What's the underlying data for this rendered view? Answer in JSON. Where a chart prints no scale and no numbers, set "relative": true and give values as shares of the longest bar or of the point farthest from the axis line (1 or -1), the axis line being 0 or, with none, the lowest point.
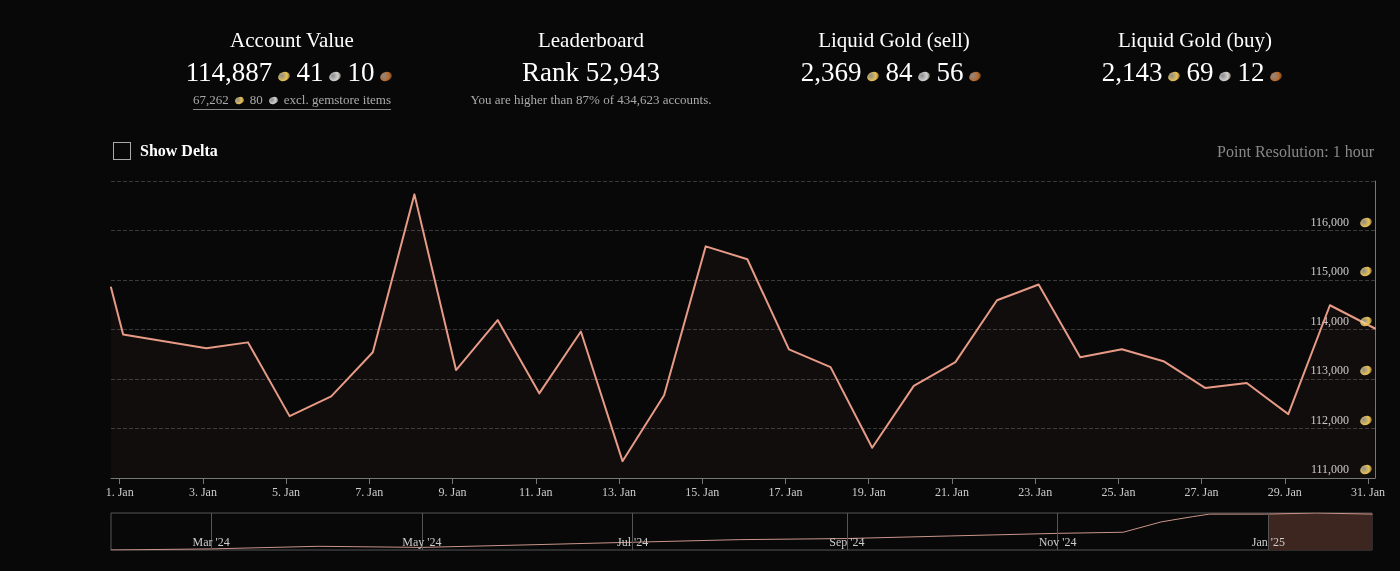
{
  "chart_data": [
    {
      "type": "other",
      "title": "Account Value",
      "annotations": [
        "114,887",
        "41",
        "10",
        "67,262",
        "80",
        "excl. gemstore items"
      ]
    },
    {
      "type": "other",
      "title": "Leaderboard",
      "annotations": [
        "Rank 52,943",
        "You are higher than 87% of 434,623 accounts."
      ]
    },
    {
      "type": "other",
      "title": "Liquid Gold (sell)",
      "annotations": [
        "2,369",
        "84",
        "56"
      ]
    },
    {
      "type": "other",
      "title": "Liquid Gold (buy)",
      "annotations": [
        "2,143",
        "69",
        "12"
      ]
    },
    {
      "type": "area",
      "annotations": [
        "Show Delta",
        "Point Resolution: 1 hour"
      ],
      "x": [
        "2024-12-31T19:00",
        "2025-01-01T02:00",
        "2025-01-03T02:00",
        "2025-01-04T02:00",
        "2025-01-05T02:00",
        "2025-01-06T02:00",
        "2025-01-07T02:00",
        "2025-01-08T02:00",
        "2025-01-09T02:00",
        "2025-01-10T02:00",
        "2025-01-11T02:00",
        "2025-01-12T02:00",
        "2025-01-13T02:00",
        "2025-01-14T02:00",
        "2025-01-15T02:00",
        "2025-01-16T02:00",
        "2025-01-17T02:00",
        "2025-01-18T02:00",
        "2025-01-19T02:00",
        "2025-01-20T02:00",
        "2025-01-21T02:00",
        "2025-01-22T02:00",
        "2025-01-23T02:00",
        "2025-01-24T02:00",
        "2025-01-25T02:00",
        "2025-01-26T02:00",
        "2025-01-27T02:00",
        "2025-01-28T02:00",
        "2025-01-29T02:00",
        "2025-01-30T02:00",
        "2025-01-31T04:00"
      ],
      "series": [
        {
          "color": "#e79a86",
          "values": [
            114850,
            113900,
            113620,
            113740,
            112250,
            112650,
            113540,
            116730,
            113180,
            114190,
            112710,
            113960,
            111340,
            112670,
            115680,
            115420,
            113600,
            113240,
            111610,
            112860,
            113340,
            114590,
            114910,
            113440,
            113600,
            113360,
            112820,
            112920,
            112290,
            114490,
            114020
          ]
        }
      ],
      "xlim": [
        "2024-12-31T19:00",
        "2025-01-31T04:00"
      ],
      "xticks": [
        {
          "value": "2025-01-01",
          "label": "1. Jan"
        },
        {
          "value": "2025-01-03",
          "label": "3. Jan"
        },
        {
          "value": "2025-01-05",
          "label": "5. Jan"
        },
        {
          "value": "2025-01-07",
          "label": "7. Jan"
        },
        {
          "value": "2025-01-09",
          "label": "9. Jan"
        },
        {
          "value": "2025-01-11",
          "label": "11. Jan"
        },
        {
          "value": "2025-01-13",
          "label": "13. Jan"
        },
        {
          "value": "2025-01-15",
          "label": "15. Jan"
        },
        {
          "value": "2025-01-17",
          "label": "17. Jan"
        },
        {
          "value": "2025-01-19",
          "label": "19. Jan"
        },
        {
          "value": "2025-01-21",
          "label": "21. Jan"
        },
        {
          "value": "2025-01-23",
          "label": "23. Jan"
        },
        {
          "value": "2025-01-25",
          "label": "25. Jan"
        },
        {
          "value": "2025-01-27",
          "label": "27. Jan"
        },
        {
          "value": "2025-01-29",
          "label": "29. Jan"
        },
        {
          "value": "2025-01-31",
          "label": "31. Jan"
        }
      ],
      "ylim": [
        111000,
        117000
      ],
      "yticks": [
        {
          "value": 111000,
          "label": "111,000"
        },
        {
          "value": 112000,
          "label": "112,000"
        },
        {
          "value": 113000,
          "label": "113,000"
        },
        {
          "value": 114000,
          "label": "114,000"
        },
        {
          "value": 115000,
          "label": "115,000"
        },
        {
          "value": 116000,
          "label": "116,000"
        },
        {
          "value": 117000,
          "label": null
        }
      ],
      "grid": "y",
      "marker": "none",
      "line_style": "solid"
    },
    {
      "type": "line",
      "relative": true,
      "x": [
        "2024-02-01",
        "2024-03-01",
        "2024-04-01",
        "2024-05-01",
        "2024-06-01",
        "2024-07-01",
        "2024-08-01",
        "2024-09-01",
        "2024-10-01",
        "2024-11-01",
        "2024-11-20",
        "2024-12-01",
        "2024-12-10",
        "2024-12-15",
        "2024-12-31",
        "2025-01-15",
        "2025-01-31"
      ],
      "series": [
        {
          "color": "#c9958a",
          "values": [
            0,
            0.03,
            0.1,
            0.07,
            0.14,
            0.21,
            0.28,
            0.31,
            0.38,
            0.45,
            0.48,
            0.76,
            0.9,
            0.97,
            0.97,
            1,
            0.97
          ]
        }
      ],
      "xlim": [
        "2024-02-01",
        "2025-01-31"
      ],
      "xticks": [
        {
          "value": "2024-03-01",
          "label": "Mar '24"
        },
        {
          "value": "2024-05-01",
          "label": "May '24"
        },
        {
          "value": "2024-07-01",
          "label": "Jul '24"
        },
        {
          "value": "2024-09-01",
          "label": "Sep '24"
        },
        {
          "value": "2024-11-01",
          "label": "Nov '24"
        },
        {
          "value": "2025-01-01",
          "label": "Jan '25"
        }
      ],
      "bands": [
        {
          "axis": "x",
          "from": "2025-01-01",
          "to": "2025-01-31",
          "color": "#3d2520"
        }
      ],
      "grid": "x",
      "marker": "none",
      "line_style": "solid"
    }
  ]
}
